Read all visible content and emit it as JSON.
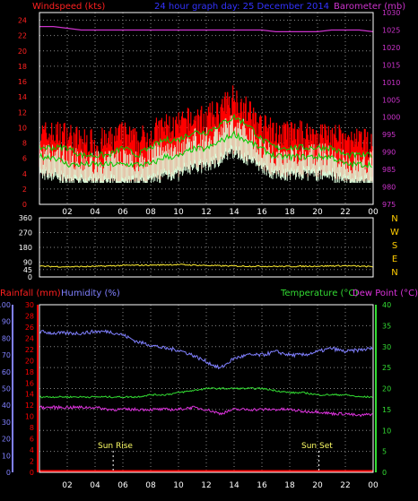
{
  "header": {
    "left_label": "Windspeed (kts)",
    "title": "24 hour graph day: 25 December 2014",
    "right_label": "Barometer (mb)"
  },
  "colors": {
    "windspeed": "#ff2020",
    "gust_fill": "#ff0000",
    "avg_wind": "#ddffdd",
    "green": "#00cc00",
    "barometer": "#cc33cc",
    "direction": "#ffee33",
    "humidity": "#8080ff",
    "rain": "#ff0000",
    "temperature": "#33dd33",
    "dewpoint": "#dd33dd",
    "grid": "#888888",
    "compass": "#ffcc00",
    "sun": "#ffff66"
  },
  "time_ticks": [
    "02",
    "04",
    "06",
    "08",
    "10",
    "12",
    "14",
    "16",
    "18",
    "20",
    "22",
    "00"
  ],
  "compass": [
    "N",
    "W",
    "S",
    "E",
    "N"
  ],
  "bottom_labels": {
    "rainfall": "Rainfall (mm)",
    "humidity": "Humidity (%)",
    "temperature": "Temperature (°C)",
    "dewpoint": "Dew Point (°C)"
  },
  "sun": {
    "rise": "Sun Rise",
    "set": "Sun Set",
    "rise_hour": 5.3,
    "set_hour": 20.1
  },
  "chart_data": [
    {
      "type": "line",
      "name": "wind",
      "x_hours": [
        0,
        1,
        2,
        3,
        4,
        5,
        6,
        7,
        8,
        9,
        10,
        11,
        12,
        13,
        14,
        15,
        16,
        17,
        18,
        19,
        20,
        21,
        22,
        23,
        24
      ],
      "series": [
        {
          "name": "Windspeed (kts)",
          "axis": "left",
          "values": [
            9,
            9,
            9,
            8,
            8,
            8,
            9,
            8,
            9,
            10,
            10,
            11,
            11,
            12,
            14,
            12,
            10,
            9,
            9,
            9,
            9,
            9,
            8,
            8,
            8
          ]
        },
        {
          "name": "Barometer (mb)",
          "axis": "right",
          "values": [
            1026,
            1026,
            1025.5,
            1025,
            1025,
            1025,
            1025,
            1025,
            1025,
            1025,
            1025,
            1025,
            1025,
            1025,
            1025,
            1025,
            1025,
            1024.5,
            1024.5,
            1024.5,
            1024.5,
            1025,
            1025,
            1025,
            1024.5
          ]
        }
      ],
      "secondary_series": [
        {
          "values": [
            7,
            7,
            7,
            6,
            6,
            6,
            7,
            6,
            7,
            8,
            8,
            9,
            9,
            10,
            11,
            10,
            8,
            7,
            7,
            7,
            7,
            7,
            6,
            6,
            6
          ]
        },
        {
          "values": [
            5,
            5,
            4,
            4,
            4,
            4,
            4,
            4,
            4,
            5,
            5,
            6,
            6,
            7,
            8,
            7,
            6,
            5,
            5,
            5,
            5,
            5,
            4,
            4,
            4
          ]
        }
      ],
      "y_left_ticks": [
        0,
        2,
        4,
        6,
        8,
        10,
        12,
        14,
        16,
        18,
        20,
        22,
        24
      ],
      "y_right_ticks": [
        975,
        980,
        985,
        990,
        995,
        1000,
        1005,
        1010,
        1015,
        1020,
        1025,
        1030
      ],
      "ylim_left": [
        0,
        25
      ],
      "ylim_right": [
        975,
        1030
      ],
      "grid": true
    },
    {
      "type": "line",
      "name": "direction",
      "x_hours": [
        0,
        2,
        4,
        6,
        8,
        10,
        12,
        14,
        16,
        18,
        20,
        22,
        24
      ],
      "series": [
        {
          "name": "direction",
          "values": [
            65,
            62,
            64,
            70,
            72,
            75,
            70,
            66,
            65,
            64,
            66,
            68,
            62
          ]
        }
      ],
      "y_ticks": [
        0,
        45,
        90,
        180,
        270,
        360
      ],
      "ylim": [
        0,
        360
      ],
      "grid": true
    },
    {
      "type": "line",
      "name": "temperature",
      "x_hours": [
        0,
        1,
        2,
        3,
        4,
        5,
        6,
        7,
        8,
        9,
        10,
        11,
        12,
        13,
        14,
        15,
        16,
        17,
        18,
        19,
        20,
        21,
        22,
        23,
        24
      ],
      "series": [
        {
          "name": "Humidity (%)",
          "axis": "humidity",
          "values": [
            84,
            83,
            83,
            83,
            84,
            84,
            82,
            78,
            76,
            74,
            73,
            70,
            66,
            62,
            68,
            70,
            70,
            72,
            70,
            70,
            72,
            74,
            72,
            73,
            74
          ]
        },
        {
          "name": "Rainfall (mm)",
          "axis": "rain",
          "values": [
            0,
            0,
            0,
            0,
            0,
            0,
            0,
            0,
            0,
            0,
            0,
            0,
            0,
            0,
            0,
            0,
            0,
            0,
            0,
            0,
            0,
            0,
            0,
            0,
            0
          ]
        },
        {
          "name": "Temperature (°C)",
          "axis": "temperature",
          "values": [
            18,
            18,
            18,
            18,
            18,
            18,
            18,
            18,
            18.5,
            18.5,
            19,
            19.5,
            20,
            20,
            20,
            20,
            20,
            19.5,
            19,
            19,
            18.5,
            18.5,
            18.5,
            18,
            18
          ]
        },
        {
          "name": "Dew Point (°C)",
          "axis": "temperature",
          "values": [
            15.5,
            15.5,
            15.5,
            15.5,
            15.5,
            15,
            15,
            15,
            15,
            15,
            15,
            15.5,
            15,
            14,
            15,
            15,
            15,
            15,
            15,
            14.5,
            14.5,
            14,
            14,
            13.5,
            14
          ]
        }
      ],
      "y_humidity_ticks": [
        0,
        10,
        20,
        30,
        40,
        50,
        60,
        70,
        80,
        90,
        100
      ],
      "y_rain_ticks": [
        0,
        2,
        4,
        6,
        8,
        10,
        12,
        14,
        16,
        18,
        20,
        22,
        24,
        26,
        28,
        30
      ],
      "y_temperature_ticks": [
        0,
        5,
        10,
        15,
        20,
        25,
        30,
        35,
        40
      ],
      "ylim_humidity": [
        0,
        100
      ],
      "ylim_rain": [
        0,
        30
      ],
      "ylim_temperature": [
        0,
        40
      ],
      "grid": true
    }
  ]
}
